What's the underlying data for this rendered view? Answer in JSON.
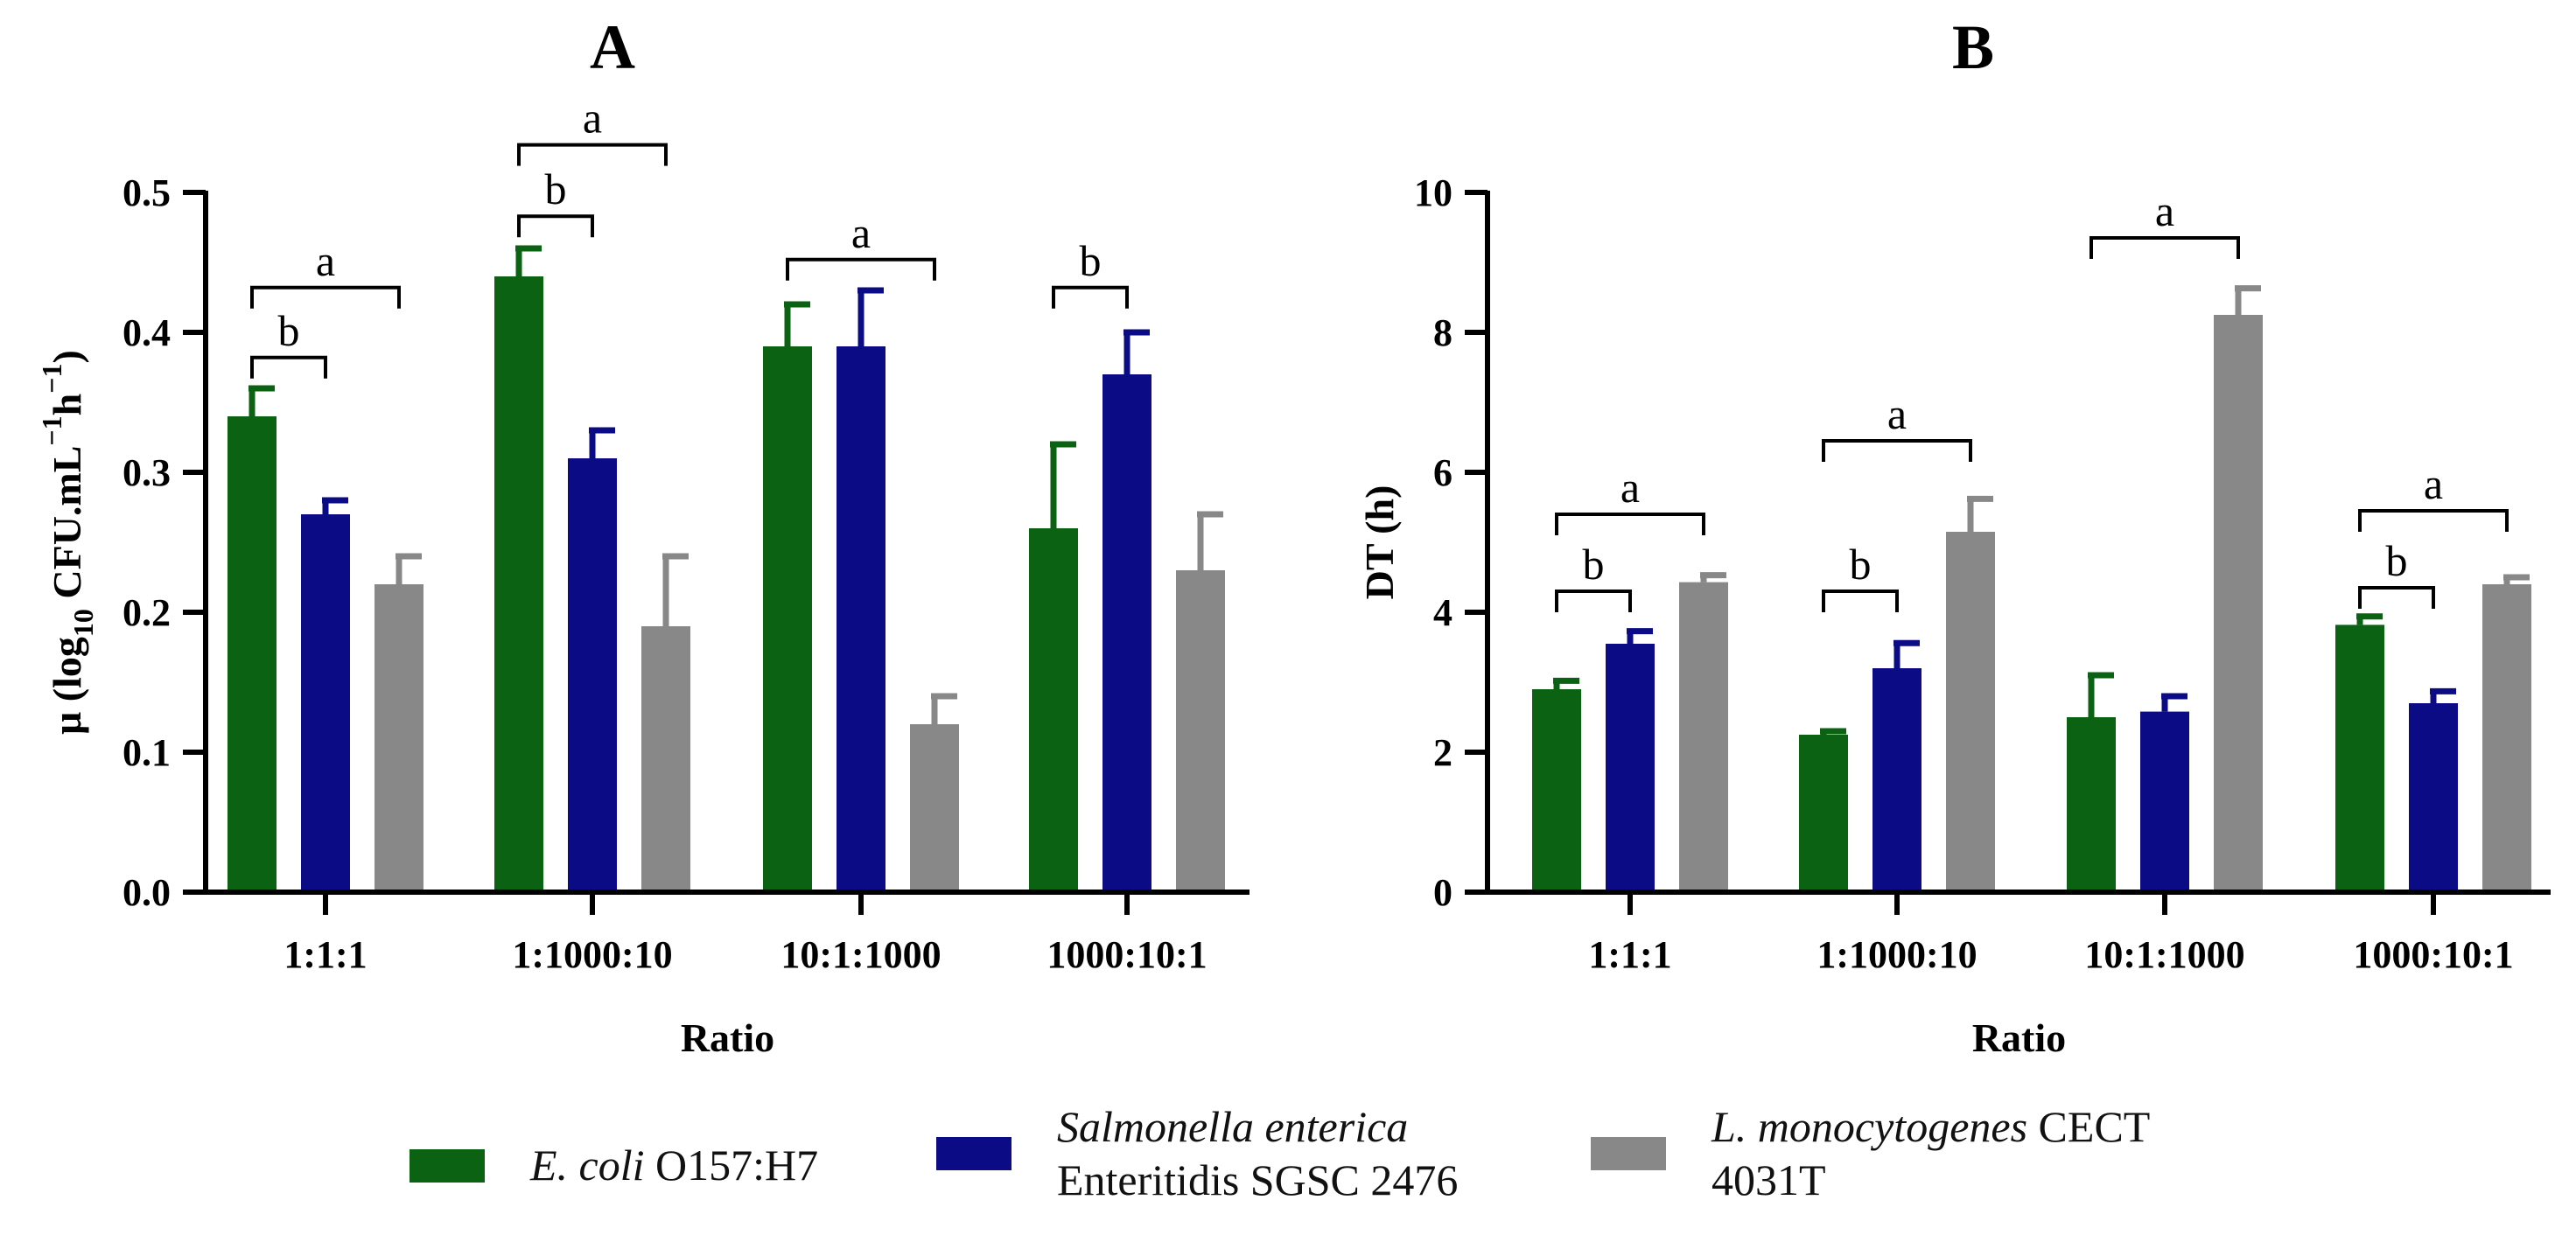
{
  "colors": {
    "ecoli": "#0b6212",
    "salmonella": "#0b0b86",
    "listeria": "#888888",
    "axis": "#000000"
  },
  "legend": {
    "ecoli": {
      "italic": "E. coli",
      "rest": " O157:H7"
    },
    "salmonella": {
      "line1": "Salmonella enterica",
      "line2": "Enteritidis SGSC 2476"
    },
    "listeria": {
      "italic": "L. monocytogenes",
      "rest": " CECT",
      "line2": "4031T"
    }
  },
  "chart_data": [
    {
      "type": "bar",
      "title": "A",
      "xlabel": "Ratio",
      "ylabel": "μ (log10 CFU.mL−1h−1)",
      "ylim": [
        0,
        0.5
      ],
      "yticks": [
        0.0,
        0.1,
        0.2,
        0.3,
        0.4,
        0.5
      ],
      "ytick_labels": [
        "0.0",
        "0.1",
        "0.2",
        "0.3",
        "0.4",
        "0.5"
      ],
      "categories": [
        "1:1:1",
        "1:1000:10",
        "10:1:1000",
        "1000:10:1"
      ],
      "series": [
        {
          "name": "E. coli O157:H7",
          "values": [
            0.34,
            0.44,
            0.39,
            0.26
          ],
          "errors": [
            0.02,
            0.02,
            0.03,
            0.06
          ]
        },
        {
          "name": "Salmonella enterica Enteritidis SGSC 2476",
          "values": [
            0.27,
            0.31,
            0.39,
            0.37
          ],
          "errors": [
            0.01,
            0.02,
            0.04,
            0.03
          ]
        },
        {
          "name": "L. monocytogenes CECT 4031T",
          "values": [
            0.22,
            0.19,
            0.12,
            0.23
          ],
          "errors": [
            0.02,
            0.05,
            0.02,
            0.04
          ]
        }
      ],
      "annotations": [
        {
          "label": "a",
          "category": 0,
          "from_series": 0,
          "to_series": 2,
          "y": 0.432
        },
        {
          "label": "b",
          "category": 0,
          "from_series": 0,
          "to_series": 1,
          "y": 0.382
        },
        {
          "label": "a",
          "category": 1,
          "from_series": 0,
          "to_series": 2,
          "y": 0.534
        },
        {
          "label": "b",
          "category": 1,
          "from_series": 0,
          "to_series": 1,
          "y": 0.483
        },
        {
          "label": "a",
          "category": 2,
          "from_series": 0,
          "to_series": 2,
          "y": 0.452
        },
        {
          "label": "b",
          "category": 3,
          "from_series": 0,
          "to_series": 1,
          "y": 0.432
        }
      ]
    },
    {
      "type": "bar",
      "title": "B",
      "xlabel": "Ratio",
      "ylabel": "DT (h)",
      "ylim": [
        0,
        10
      ],
      "yticks": [
        0,
        2,
        4,
        6,
        8,
        10
      ],
      "ytick_labels": [
        "0",
        "2",
        "4",
        "6",
        "8",
        "10"
      ],
      "categories": [
        "1:1:1",
        "1:1000:10",
        "10:1:1000",
        "1000:10:1"
      ],
      "series": [
        {
          "name": "E. coli O157:H7",
          "values": [
            2.9,
            2.25,
            2.5,
            3.82
          ],
          "errors": [
            0.12,
            0.05,
            0.6,
            0.12
          ]
        },
        {
          "name": "Salmonella enterica Enteritidis SGSC 2476",
          "values": [
            3.55,
            3.2,
            2.58,
            2.7
          ],
          "errors": [
            0.18,
            0.36,
            0.22,
            0.17
          ]
        },
        {
          "name": "L. monocytogenes CECT 4031T",
          "values": [
            4.43,
            5.15,
            8.25,
            4.4
          ],
          "errors": [
            0.1,
            0.47,
            0.38,
            0.1
          ]
        }
      ],
      "annotations": [
        {
          "label": "a",
          "category": 0,
          "from_series": 0,
          "to_series": 2,
          "y": 5.4
        },
        {
          "label": "b",
          "category": 0,
          "from_series": 0,
          "to_series": 1,
          "y": 4.3
        },
        {
          "label": "a",
          "category": 1,
          "from_series": 0,
          "to_series": 2,
          "y": 6.45
        },
        {
          "label": "b",
          "category": 1,
          "from_series": 0,
          "to_series": 1,
          "y": 4.3
        },
        {
          "label": "a",
          "category": 2,
          "from_series": 0,
          "to_series": 2,
          "y": 9.35
        },
        {
          "label": "a",
          "category": 3,
          "from_series": 0,
          "to_series": 2,
          "y": 5.45
        },
        {
          "label": "b",
          "category": 3,
          "from_series": 0,
          "to_series": 1,
          "y": 4.35
        }
      ]
    }
  ]
}
